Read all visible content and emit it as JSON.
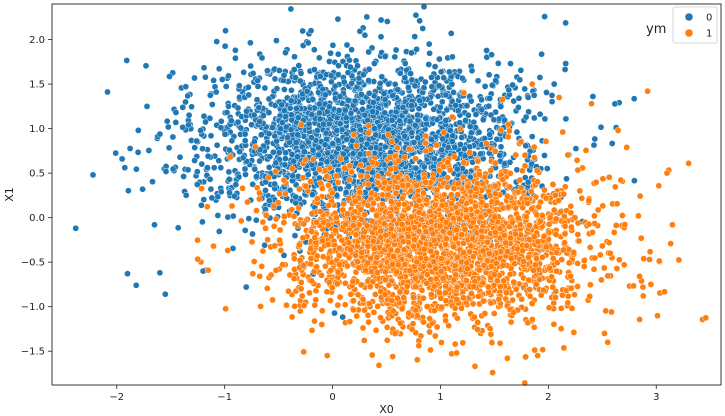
{
  "chart_data": {
    "type": "scatter",
    "xlabel": "X0",
    "ylabel": "X1",
    "xlim": [
      -2.6,
      3.6
    ],
    "ylim": [
      -1.88,
      2.4
    ],
    "x_ticks": [
      -2,
      -1,
      0,
      1,
      2,
      3
    ],
    "y_ticks": [
      -1.5,
      -1.0,
      -0.5,
      0.0,
      0.5,
      1.0,
      1.5,
      2.0
    ],
    "x_tick_labels": [
      "−2",
      "−1",
      "0",
      "1",
      "2",
      "3"
    ],
    "y_tick_labels": [
      "−1.5",
      "−1.0",
      "−0.5",
      "0.0",
      "0.5",
      "1.0",
      "1.5",
      "2.0"
    ],
    "grid": false,
    "side_label": "ym",
    "legend": {
      "placement": "top-right",
      "entries": [
        "0",
        "1"
      ]
    },
    "series": [
      {
        "name": "0",
        "color": "#1f77b4",
        "cluster_center": [
          0.3,
          0.85
        ],
        "cluster_spread": [
          0.75,
          0.48
        ],
        "points_drawn_approx": 2600,
        "x": [
          -2.38,
          -2.22,
          -1.95,
          -1.82,
          -1.9,
          -1.72,
          -1.65,
          -1.55,
          -1.8,
          -1.76,
          -1.6,
          -0.9,
          -0.2,
          0.05,
          0.3,
          0.45,
          -0.45,
          1.1,
          -1.2,
          -0.8
        ],
        "y": [
          -0.12,
          0.48,
          0.66,
          -0.76,
          -0.63,
          1.25,
          -0.08,
          -0.86,
          0.98,
          0.32,
          -0.62,
          1.88,
          2.1,
          2.23,
          2.05,
          2.22,
          1.6,
          2.07,
          -0.6,
          -0.78
        ]
      },
      {
        "name": "1",
        "color": "#ff7f0e",
        "cluster_center": [
          1.0,
          -0.3
        ],
        "cluster_spread": [
          0.72,
          0.45
        ],
        "points_drawn_approx": 2600,
        "x": [
          3.3,
          3.15,
          3.1,
          2.95,
          2.92,
          2.55,
          2.88,
          2.52,
          1.85,
          1.32,
          1.62,
          1.15,
          -0.05,
          -0.3,
          2.1,
          2.4,
          1.9,
          -0.1
        ],
        "y": [
          0.61,
          -0.08,
          0.5,
          -0.75,
          1.42,
          -1.4,
          -0.88,
          -1.3,
          1.5,
          -1.67,
          -1.58,
          -1.52,
          -1.55,
          -1.05,
          1.35,
          1.28,
          -1.55,
          -1.2
        ]
      }
    ]
  }
}
